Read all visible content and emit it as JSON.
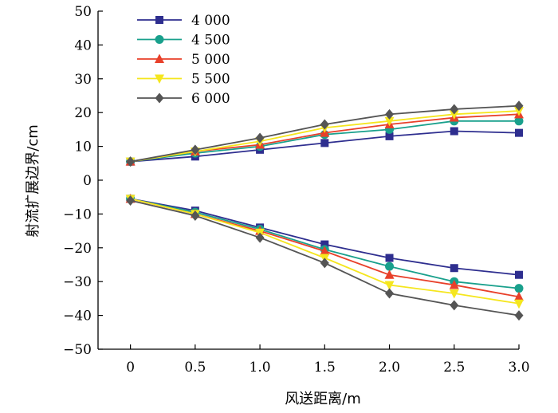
{
  "chart_data": {
    "type": "line",
    "xlabel": "风送距离/m",
    "ylabel": "射流扩展边界/cm",
    "x": [
      0,
      0.5,
      1.0,
      1.5,
      2.0,
      2.5,
      3.0
    ],
    "x_tick_labels": [
      "0",
      "0.5",
      "1.0",
      "1.5",
      "2.0",
      "2.5",
      "3.0"
    ],
    "xlim": [
      -0.25,
      3.0
    ],
    "ylim": [
      -50,
      50
    ],
    "y_ticks": [
      -50,
      -40,
      -30,
      -20,
      -10,
      0,
      10,
      20,
      30,
      40,
      50
    ],
    "y_tick_labels": [
      "−50",
      "−40",
      "−30",
      "−20",
      "−10",
      "0",
      "10",
      "20",
      "30",
      "40",
      "50"
    ],
    "grid": false,
    "legend_position": "top-left",
    "series": [
      {
        "name": "4 000",
        "color": "#2E2E8F",
        "marker": "square",
        "upper": [
          5.5,
          7,
          9,
          11,
          13,
          14.5,
          14
        ],
        "lower": [
          -5.5,
          -9,
          -14,
          -19,
          -23,
          -26,
          -28
        ]
      },
      {
        "name": "4 500",
        "color": "#19A08C",
        "marker": "circle",
        "upper": [
          5.5,
          8,
          10,
          13.5,
          15,
          17.5,
          17.5
        ],
        "lower": [
          -5.5,
          -9.5,
          -14.5,
          -20.5,
          -25.5,
          -30,
          -32
        ]
      },
      {
        "name": "5 000",
        "color": "#E8402A",
        "marker": "triangle-up",
        "upper": [
          5.5,
          8.5,
          10.5,
          14,
          16.5,
          18.5,
          19.5
        ],
        "lower": [
          -5.5,
          -10,
          -15,
          -21,
          -28,
          -31,
          -34.5
        ]
      },
      {
        "name": "5 500",
        "color": "#F5E61E",
        "marker": "triangle-down",
        "upper": [
          5.5,
          8.5,
          11.5,
          15.5,
          17.5,
          19.5,
          20.5
        ],
        "lower": [
          -5.5,
          -10,
          -15.5,
          -23,
          -31,
          -33.5,
          -36.5
        ]
      },
      {
        "name": "6 000",
        "color": "#555555",
        "marker": "diamond",
        "upper": [
          5.5,
          9,
          12.5,
          16.5,
          19.5,
          21,
          22
        ],
        "lower": [
          -6,
          -10.5,
          -17,
          -24.5,
          -33.5,
          -37,
          -40
        ]
      }
    ]
  }
}
